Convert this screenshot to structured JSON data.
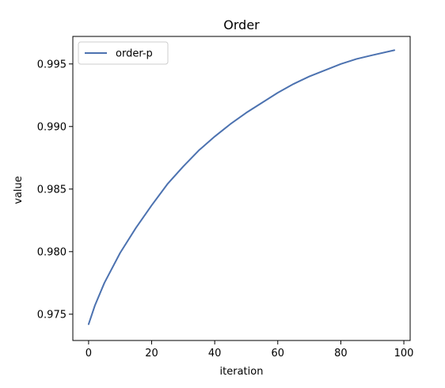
{
  "chart_data": {
    "type": "line",
    "title": "Order",
    "xlabel": "iteration",
    "ylabel": "value",
    "xlim": [
      -5,
      102
    ],
    "ylim": [
      0.9729,
      0.9972
    ],
    "xticks": [
      0,
      20,
      40,
      60,
      80,
      100
    ],
    "xtick_labels": [
      "0",
      "20",
      "40",
      "60",
      "80",
      "100"
    ],
    "yticks": [
      0.975,
      0.98,
      0.985,
      0.99,
      0.995
    ],
    "ytick_labels": [
      "0.975",
      "0.980",
      "0.985",
      "0.990",
      "0.995"
    ],
    "grid": false,
    "legend": {
      "placement": "top-left"
    },
    "series": [
      {
        "name": "order-p",
        "color": "#4c72b0",
        "x": [
          0,
          2,
          5,
          10,
          15,
          20,
          25,
          30,
          35,
          40,
          43,
          45,
          50,
          55,
          60,
          65,
          70,
          75,
          80,
          85,
          90,
          97
        ],
        "y": [
          0.9742,
          0.9757,
          0.9775,
          0.9799,
          0.9819,
          0.9837,
          0.9854,
          0.9868,
          0.9881,
          0.9892,
          0.9898,
          0.9902,
          0.9911,
          0.9919,
          0.9927,
          0.9934,
          0.994,
          0.9945,
          0.995,
          0.9954,
          0.9957,
          0.9961
        ]
      }
    ]
  }
}
